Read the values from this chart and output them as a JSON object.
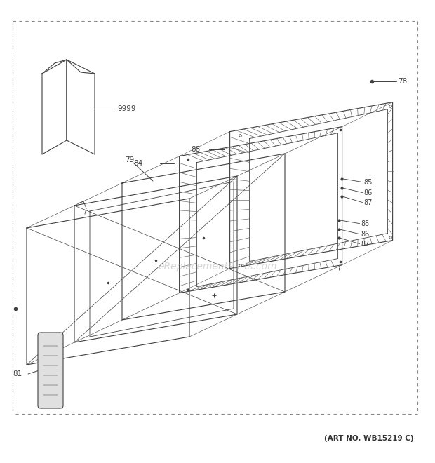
{
  "art_no": "(ART NO. WB15219 C)",
  "watermark": "eReplacementParts.com",
  "bg_color": "#ffffff",
  "line_color": "#404040",
  "dashed_color": "#888888",
  "watermark_color": "#cccccc"
}
